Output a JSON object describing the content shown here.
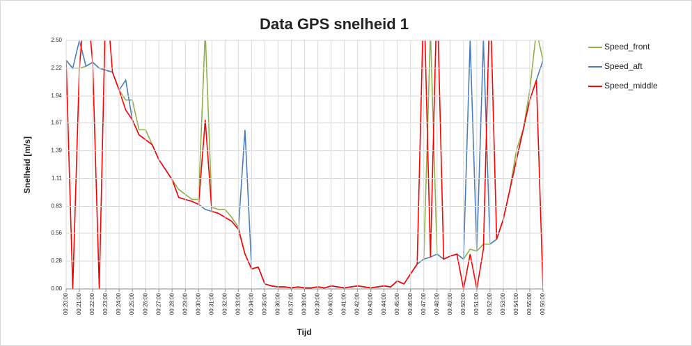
{
  "chart_data": {
    "type": "line",
    "title": "Data GPS snelheid 1",
    "x_label": "Tijd",
    "y_label": "Snelheid [m/s]",
    "x": [
      20,
      20.5,
      21,
      21.5,
      22,
      22.5,
      23,
      23.5,
      24,
      24.5,
      25,
      25.5,
      26,
      26.5,
      27,
      27.5,
      28,
      28.5,
      29,
      29.5,
      30,
      30.5,
      31,
      31.5,
      32,
      32.5,
      33,
      33.5,
      34,
      34.5,
      35,
      35.5,
      36,
      36.5,
      37,
      37.5,
      38,
      38.5,
      39,
      39.5,
      40,
      40.5,
      41,
      41.5,
      42,
      42.5,
      43,
      43.5,
      44,
      44.5,
      45,
      45.5,
      46,
      46.5,
      47,
      47.5,
      48,
      48.5,
      49,
      49.5,
      50,
      50.5,
      51,
      51.5,
      52,
      52.5,
      53,
      53.5,
      54,
      54.5,
      55,
      55.5,
      56
    ],
    "series": [
      {
        "name": "Speed_front",
        "color": "#8faf4a",
        "values": [
          2.3,
          2.22,
          2.22,
          2.24,
          2.28,
          2.22,
          2.2,
          2.18,
          2.0,
          1.9,
          1.9,
          1.6,
          1.6,
          1.45,
          1.3,
          1.2,
          1.1,
          1.0,
          0.95,
          0.9,
          0.9,
          2.6,
          0.82,
          0.8,
          0.8,
          0.72,
          0.62,
          0.35,
          0.2,
          0.22,
          0.05,
          0.03,
          0.02,
          0.02,
          0.01,
          0.02,
          0.01,
          0.01,
          0.02,
          0.01,
          0.03,
          0.02,
          0.01,
          0.02,
          0.03,
          0.02,
          0.01,
          0.02,
          0.03,
          0.02,
          0.08,
          0.05,
          0.15,
          0.25,
          0.3,
          2.6,
          0.35,
          0.3,
          0.33,
          0.35,
          0.3,
          0.4,
          0.38,
          0.45,
          0.45,
          0.5,
          0.7,
          1.0,
          1.4,
          1.6,
          2.0,
          2.6,
          2.3
        ]
      },
      {
        "name": "Speed_aft",
        "color": "#4a7ebb",
        "values": [
          2.3,
          2.22,
          2.5,
          2.24,
          2.28,
          2.22,
          2.2,
          2.18,
          2.0,
          2.1,
          1.7,
          1.55,
          1.5,
          1.45,
          1.3,
          1.2,
          1.1,
          0.92,
          0.9,
          0.88,
          0.85,
          0.8,
          0.78,
          0.76,
          0.72,
          0.68,
          0.6,
          1.6,
          0.2,
          0.22,
          0.05,
          0.03,
          0.02,
          0.02,
          0.01,
          0.02,
          0.01,
          0.01,
          0.02,
          0.01,
          0.03,
          0.02,
          0.01,
          0.02,
          0.03,
          0.02,
          0.01,
          0.02,
          0.03,
          0.02,
          0.08,
          0.05,
          0.15,
          0.25,
          0.3,
          0.32,
          0.35,
          0.3,
          0.33,
          0.35,
          0.3,
          2.5,
          0.38,
          2.5,
          0.45,
          0.5,
          0.7,
          1.0,
          1.3,
          1.6,
          1.9,
          2.1,
          2.3
        ]
      },
      {
        "name": "Speed_middle",
        "color": "#ff0000",
        "values": [
          2.3,
          0,
          2.22,
          3,
          2.28,
          0,
          3,
          2.18,
          2.0,
          1.8,
          1.7,
          1.55,
          1.5,
          1.45,
          1.3,
          1.2,
          1.1,
          0.92,
          0.9,
          0.88,
          0.85,
          1.7,
          0.78,
          0.76,
          0.72,
          0.68,
          0.6,
          0.35,
          0.2,
          0.22,
          0.05,
          0.03,
          0.02,
          0.02,
          0.01,
          0.02,
          0.01,
          0.01,
          0.02,
          0.01,
          0.03,
          0.02,
          0.01,
          0.02,
          0.03,
          0.02,
          0.01,
          0.02,
          0.03,
          0.02,
          0.08,
          0.05,
          0.15,
          0.25,
          3,
          0.32,
          3,
          0.3,
          0.33,
          0.35,
          0,
          0.35,
          0,
          0.4,
          3,
          0.5,
          0.7,
          1.0,
          1.3,
          1.6,
          1.9,
          2.1,
          0
        ]
      }
    ],
    "xlim": [
      20,
      56
    ],
    "xticks": [
      {
        "value": 20,
        "label": "00:20:00"
      },
      {
        "value": 21,
        "label": "00:21:00"
      },
      {
        "value": 22,
        "label": "00:22:00"
      },
      {
        "value": 23,
        "label": "00:23:00"
      },
      {
        "value": 24,
        "label": "00:24:00"
      },
      {
        "value": 25,
        "label": "00:25:00"
      },
      {
        "value": 26,
        "label": "00:26:00"
      },
      {
        "value": 27,
        "label": "00:27:00"
      },
      {
        "value": 28,
        "label": "00:28:00"
      },
      {
        "value": 29,
        "label": "00:29:00"
      },
      {
        "value": 30,
        "label": "00:30:00"
      },
      {
        "value": 31,
        "label": "00:31:00"
      },
      {
        "value": 32,
        "label": "00:32:00"
      },
      {
        "value": 33,
        "label": "00:33:00"
      },
      {
        "value": 34,
        "label": "00:34:00"
      },
      {
        "value": 35,
        "label": "00:35:00"
      },
      {
        "value": 36,
        "label": "00:36:00"
      },
      {
        "value": 37,
        "label": "00:37:00"
      },
      {
        "value": 38,
        "label": "00:38:00"
      },
      {
        "value": 39,
        "label": "00:39:00"
      },
      {
        "value": 40,
        "label": "00:40:00"
      },
      {
        "value": 41,
        "label": "00:41:00"
      },
      {
        "value": 42,
        "label": "00:42:00"
      },
      {
        "value": 43,
        "label": "00:43:00"
      },
      {
        "value": 44,
        "label": "00:44:00"
      },
      {
        "value": 45,
        "label": "00:45:00"
      },
      {
        "value": 46,
        "label": "00:46:00"
      },
      {
        "value": 47,
        "label": "00:47:00"
      },
      {
        "value": 48,
        "label": "00:48:00"
      },
      {
        "value": 49,
        "label": "00:49:00"
      },
      {
        "value": 50,
        "label": "00:50:00"
      },
      {
        "value": 51,
        "label": "00:51:00"
      },
      {
        "value": 52,
        "label": "00:52:00"
      },
      {
        "value": 53,
        "label": "00:53:00"
      },
      {
        "value": 54,
        "label": "00:54:00"
      },
      {
        "value": 55,
        "label": "00:55:00"
      },
      {
        "value": 56,
        "label": "00:56:00"
      }
    ],
    "ylim": [
      0,
      2.5
    ],
    "yticks": [
      {
        "value": 0,
        "label": "0.00"
      },
      0.28,
      0.56,
      0.83,
      1.11,
      1.39,
      1.67,
      1.94,
      2.22,
      {
        "value": 2.5,
        "label": "2.50"
      }
    ],
    "grid": true,
    "legend": "right"
  }
}
